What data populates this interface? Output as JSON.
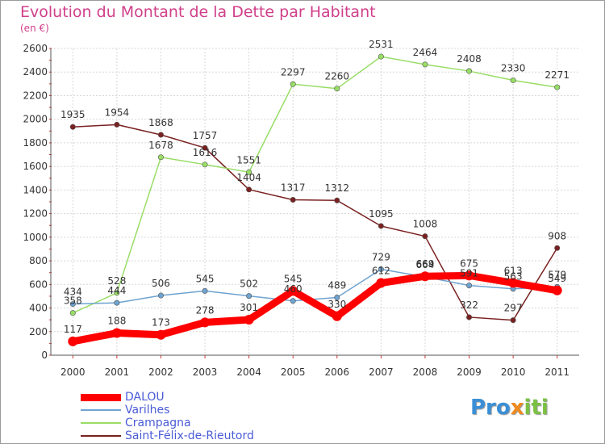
{
  "title": "Evolution du Montant de la Dette par Habitant",
  "subtitle": "(en €)",
  "logo": {
    "parts": [
      "Pro",
      "x",
      "iti"
    ],
    "colors": [
      "#3a8fd6",
      "#f08a1c",
      "#7ac142"
    ]
  },
  "chart_data": {
    "type": "line",
    "categories": [
      "2000",
      "2001",
      "2002",
      "2003",
      "2004",
      "2005",
      "2006",
      "2007",
      "2008",
      "2009",
      "2010",
      "2011"
    ],
    "ylim": [
      0,
      2600
    ],
    "yticks": [
      "0",
      "200",
      "400",
      "600",
      "800",
      "1000",
      "1200",
      "1400",
      "1600",
      "1800",
      "2000",
      "2200",
      "2400",
      "2600"
    ],
    "grid": true,
    "legend_position": "bottom-left",
    "series": [
      {
        "name": "DALOU",
        "color": "#ff0000",
        "values": [
          117,
          188,
          173,
          278,
          301,
          545,
          330,
          612,
          669,
          675,
          613,
          549
        ]
      },
      {
        "name": "Varilhes",
        "color": "#6fa3d0",
        "values": [
          434,
          444,
          506,
          545,
          502,
          460,
          489,
          729,
          664,
          591,
          563,
          579
        ]
      },
      {
        "name": "Crampagna",
        "color": "#99dd66",
        "values": [
          358,
          528,
          1678,
          1616,
          1551,
          2297,
          2260,
          2531,
          2464,
          2408,
          2330,
          2271
        ]
      },
      {
        "name": "Saint-Félix-de-Rieutord",
        "color": "#7a2020",
        "values": [
          1935,
          1954,
          1868,
          1757,
          1404,
          1317,
          1312,
          1095,
          1008,
          322,
          297,
          908
        ]
      }
    ]
  }
}
